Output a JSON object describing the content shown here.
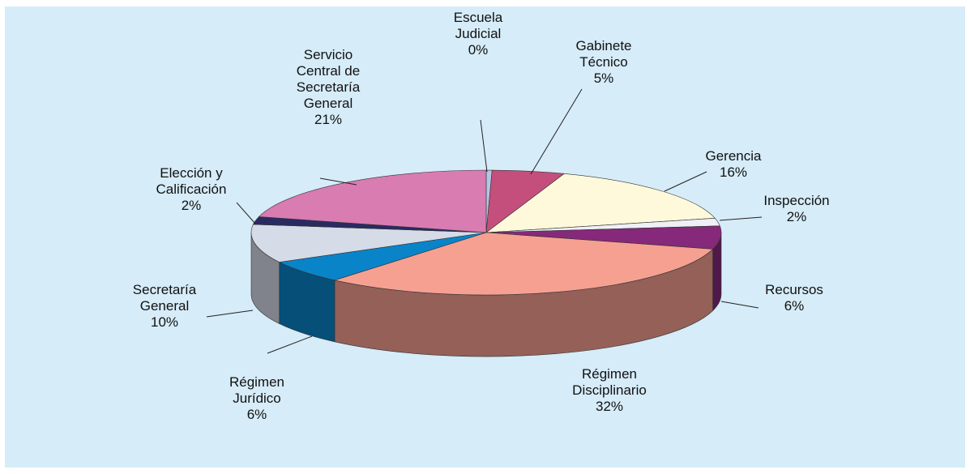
{
  "chart_data": {
    "type": "pie",
    "categories": [
      "Escuela Judicial",
      "Gabinete Técnico",
      "Gerencia",
      "Inspección",
      "Recursos",
      "Régimen Disciplinario",
      "Régimen Jurídico",
      "Secretaría General",
      "Elección y Calificación",
      "Servicio Central de Secretaría General"
    ],
    "values": [
      0.4,
      5,
      16,
      2,
      6,
      32,
      6,
      10,
      2,
      21
    ],
    "value_labels": [
      "0%",
      "5%",
      "16%",
      "2%",
      "6%",
      "32%",
      "6%",
      "10%",
      "2%",
      "21%"
    ],
    "colors": [
      "#b4c6e6",
      "#c44f7c",
      "#fff9dc",
      "#eef0f6",
      "#86297a",
      "#f6a092",
      "#0a84c8",
      "#d6dbe8",
      "#2a2a62",
      "#d87cb2"
    ]
  }
}
